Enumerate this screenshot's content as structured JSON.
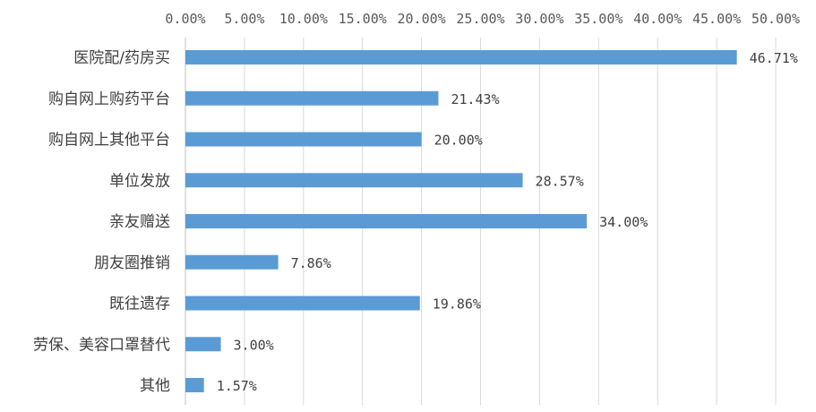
{
  "chart_data": {
    "type": "bar",
    "orientation": "horizontal",
    "axis_position": "top",
    "grid": true,
    "legend": "none",
    "bar_color": "#5b9bd5",
    "xlim": [
      0,
      50
    ],
    "x_ticks": [
      "0.00%",
      "5.00%",
      "10.00%",
      "15.00%",
      "20.00%",
      "25.00%",
      "30.00%",
      "35.00%",
      "40.00%",
      "45.00%",
      "50.00%"
    ],
    "categories": [
      "医院配/药房买",
      "购自网上购药平台",
      "购自网上其他平台",
      "单位发放",
      "亲友赠送",
      "朋友圈推销",
      "既往遗存",
      "劳保、美容口罩替代",
      "其他"
    ],
    "values": [
      46.71,
      21.43,
      20.0,
      28.57,
      34.0,
      7.86,
      19.86,
      3.0,
      1.57
    ],
    "data_labels": [
      "46.71%",
      "21.43%",
      "20.00%",
      "28.57%",
      "34.00%",
      "7.86%",
      "19.86%",
      "3.00%",
      "1.57%"
    ]
  }
}
